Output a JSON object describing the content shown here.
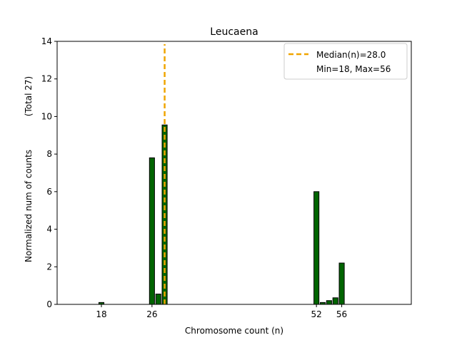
{
  "chart_data": {
    "type": "bar",
    "title": "Leucaena",
    "xlabel": "Chromosome count (n)",
    "ylabel": "Normalized num of counts",
    "ylabel_secondary": "(Total 27)",
    "xlim": [
      11,
      67
    ],
    "ylim": [
      0,
      14
    ],
    "xticks": [
      18,
      26,
      52,
      56
    ],
    "yticks": [
      0,
      2,
      4,
      6,
      8,
      10,
      12,
      14
    ],
    "grid": false,
    "bar_color": "#006400",
    "bar_edge_color": "#000000",
    "series": [
      {
        "bars": [
          {
            "x": 18,
            "value": 0.1
          },
          {
            "x": 26,
            "value": 7.8
          },
          {
            "x": 27,
            "value": 0.55
          },
          {
            "x": 28,
            "value": 9.55
          },
          {
            "x": 52,
            "value": 6.0
          },
          {
            "x": 53,
            "value": 0.1
          },
          {
            "x": 54,
            "value": 0.2
          },
          {
            "x": 55,
            "value": 0.35
          },
          {
            "x": 56,
            "value": 2.2
          }
        ]
      }
    ],
    "median_line": {
      "x": 28.0,
      "color": "#f0a500",
      "style": "dashed"
    },
    "legend": {
      "placement": "top-right",
      "entries": [
        {
          "label": "Median(n)=28.0",
          "marker": "dashed-line",
          "color": "#f0a500"
        },
        {
          "label": "Min=18, Max=56",
          "marker": "none"
        }
      ]
    }
  }
}
